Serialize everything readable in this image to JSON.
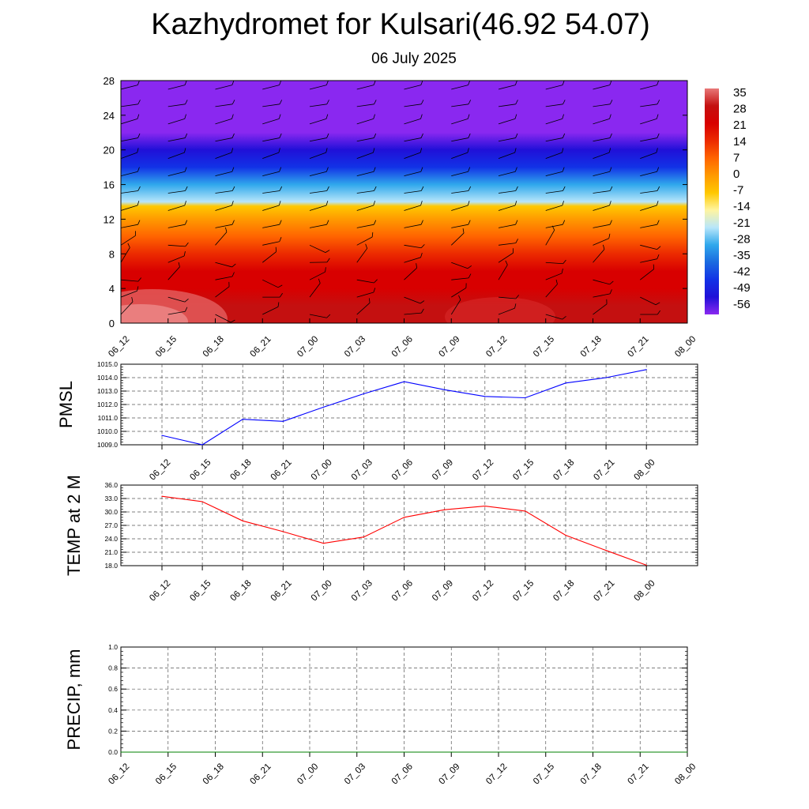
{
  "header": {
    "title": "Kazhydromet for Kulsari(46.92 54.07)",
    "subtitle": "06 July 2025"
  },
  "chart_data": [
    {
      "type": "heatmap",
      "title": "",
      "xlabel": "",
      "ylabel": "",
      "x_tick_labels": [
        "06_12",
        "06_15",
        "06_18",
        "06_21",
        "07_00",
        "07_03",
        "07_06",
        "07_09",
        "07_12",
        "07_15",
        "07_18",
        "07_21",
        "08_00"
      ],
      "y_ticks": [
        0,
        4,
        8,
        12,
        16,
        20,
        24,
        28
      ],
      "ylim": [
        0,
        28
      ],
      "colorbar_labels": [
        "35",
        "28",
        "21",
        "14",
        "7",
        "0",
        "-7",
        "-14",
        "-21",
        "-28",
        "-35",
        "-42",
        "-49",
        "-56"
      ],
      "colorbar_stops": [
        "#e87878",
        "#c41010",
        "#d80000",
        "#ec2a00",
        "#ff6400",
        "#ff9a00",
        "#ffc800",
        "#fff5a0",
        "#b8e6fa",
        "#30a8ec",
        "#1a6ae0",
        "#1232e6",
        "#2010d8",
        "#8a28f0"
      ],
      "temperature_profile": [
        {
          "y": 0,
          "value": 33
        },
        {
          "y": 2,
          "value": 31
        },
        {
          "y": 4,
          "value": 27
        },
        {
          "y": 6,
          "value": 22
        },
        {
          "y": 8,
          "value": 16
        },
        {
          "y": 10,
          "value": 10
        },
        {
          "y": 12,
          "value": 4
        },
        {
          "y": 13.5,
          "value": -4
        },
        {
          "y": 14,
          "value": -16
        },
        {
          "y": 16,
          "value": -26
        },
        {
          "y": 18,
          "value": -36
        },
        {
          "y": 20,
          "value": -46
        },
        {
          "y": 22,
          "value": -56
        },
        {
          "y": 24,
          "value": -60
        },
        {
          "y": 28,
          "value": -61
        }
      ],
      "grid": false
    },
    {
      "type": "line",
      "ylabel": "PMSL",
      "ylim": [
        1009.0,
        1015.0
      ],
      "y_tick_labels": [
        "1009.0",
        "1010.0",
        "1011.0",
        "1012.0",
        "1013.0",
        "1014.0",
        "1015.0"
      ],
      "x_tick_labels": [
        "06_12",
        "06_15",
        "06_18",
        "06_21",
        "07_00",
        "07_03",
        "07_06",
        "07_09",
        "07_12",
        "07_15",
        "07_18",
        "07_21",
        "08_00"
      ],
      "grid": true,
      "series": [
        {
          "color": "#0000ff",
          "values": [
            1009.7,
            1009.0,
            1010.9,
            1010.75,
            1011.8,
            1012.8,
            1013.7,
            1013.1,
            1012.6,
            1012.5,
            1013.6,
            1014.0,
            1014.6
          ]
        }
      ]
    },
    {
      "type": "line",
      "ylabel": "TEMP at 2 M",
      "ylim": [
        18.0,
        36.0
      ],
      "y_tick_labels": [
        "18.0",
        "21.0",
        "24.0",
        "27.0",
        "30.0",
        "33.0",
        "36.0"
      ],
      "x_tick_labels": [
        "06_12",
        "06_15",
        "06_18",
        "06_21",
        "07_00",
        "07_03",
        "07_06",
        "07_09",
        "07_12",
        "07_15",
        "07_18",
        "07_21",
        "08_00"
      ],
      "grid": true,
      "series": [
        {
          "color": "#ff0000",
          "values": [
            33.5,
            32.3,
            28.0,
            25.6,
            23.0,
            24.4,
            28.8,
            30.5,
            31.3,
            30.2,
            24.8,
            21.4,
            18.1
          ]
        }
      ]
    },
    {
      "type": "line",
      "ylabel": "PRECIP, mm",
      "ylim": [
        0.0,
        1.0
      ],
      "y_tick_labels": [
        "0.0",
        "0.2",
        "0.4",
        "0.6",
        "0.8",
        "1.0"
      ],
      "x_tick_labels": [
        "06_12",
        "06_15",
        "06_18",
        "06_21",
        "07_00",
        "07_03",
        "07_06",
        "07_09",
        "07_12",
        "07_15",
        "07_18",
        "07_21",
        "08_00"
      ],
      "grid": true,
      "series": [
        {
          "color": "#008000",
          "values": [
            0,
            0,
            0,
            0,
            0,
            0,
            0,
            0,
            0,
            0,
            0,
            0,
            0
          ]
        }
      ]
    }
  ]
}
